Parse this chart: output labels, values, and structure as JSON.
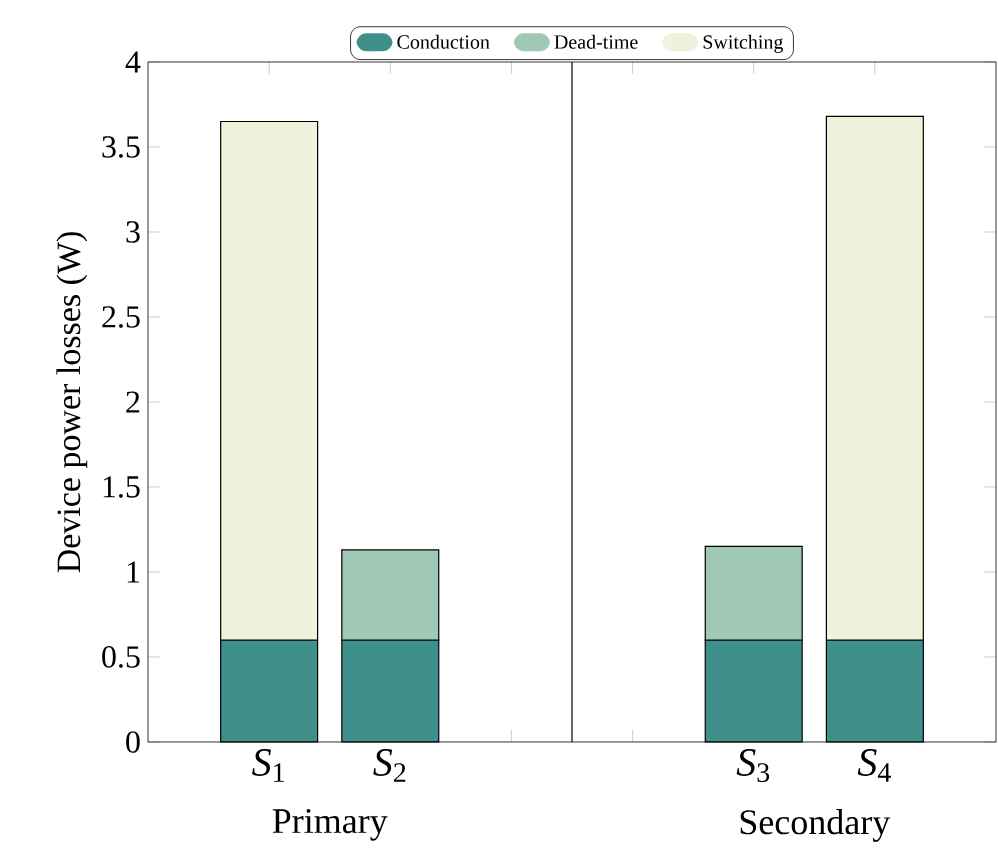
{
  "chart_data": {
    "type": "bar",
    "stacked": true,
    "ylabel": "Device power losses (W)",
    "categories": [
      "*S*$_{1}$",
      "*S*$_{2}$",
      null,
      null,
      "*S*$_{3}$",
      "*S*$_{4}$"
    ],
    "series": [
      {
        "name": "Conduction",
        "color": "#3f8f8a",
        "values": [
          0.6,
          0.6,
          null,
          null,
          0.6,
          0.6
        ]
      },
      {
        "name": "Dead-time",
        "color": "#a0c8b4",
        "values": [
          null,
          0.53,
          null,
          null,
          0.55,
          null
        ]
      },
      {
        "name": "Switching",
        "color": "#eef3dc",
        "values": [
          3.05,
          null,
          null,
          null,
          null,
          3.08
        ]
      }
    ],
    "ylim": [
      0,
      4
    ],
    "yticks": [
      0,
      0.5,
      1,
      1.5,
      2,
      2.5,
      3,
      3.5,
      4
    ],
    "annotations": [
      "Primary",
      "Secondary"
    ],
    "legend": "top",
    "grid": false
  }
}
